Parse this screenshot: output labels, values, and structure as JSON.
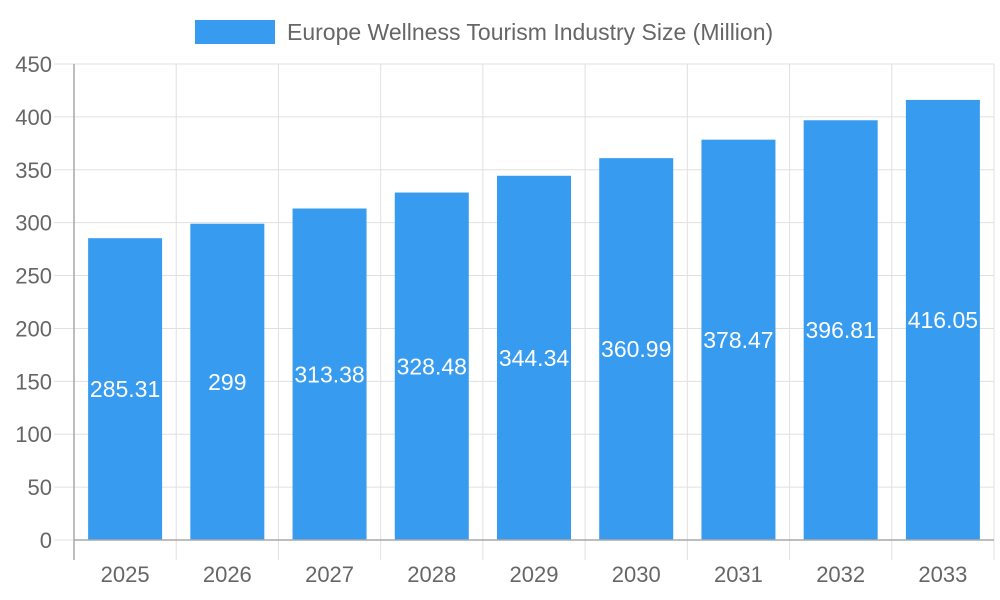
{
  "chart_data": {
    "type": "bar",
    "title": "",
    "xlabel": "",
    "ylabel": "",
    "categories": [
      "2025",
      "2026",
      "2027",
      "2028",
      "2029",
      "2030",
      "2031",
      "2032",
      "2033"
    ],
    "series": [
      {
        "name": "Europe Wellness Tourism Industry Size (Million)",
        "values": [
          285.31,
          299,
          313.38,
          328.48,
          344.34,
          360.99,
          378.47,
          396.81,
          416.05
        ]
      }
    ],
    "data_labels": [
      "285.31",
      "299",
      "313.38",
      "328.48",
      "344.34",
      "360.99",
      "378.47",
      "396.81",
      "416.05"
    ],
    "ylim": [
      0,
      450
    ],
    "yticks": [
      "0",
      "50",
      "100",
      "150",
      "200",
      "250",
      "300",
      "350",
      "400",
      "450"
    ],
    "grid": true,
    "legend": "top-center",
    "colors": {
      "bar": "#379BEF",
      "grid": "#E0E0E0",
      "axis": "#A8A8A8",
      "text": "#666666",
      "label": "#FFFFFF"
    }
  }
}
